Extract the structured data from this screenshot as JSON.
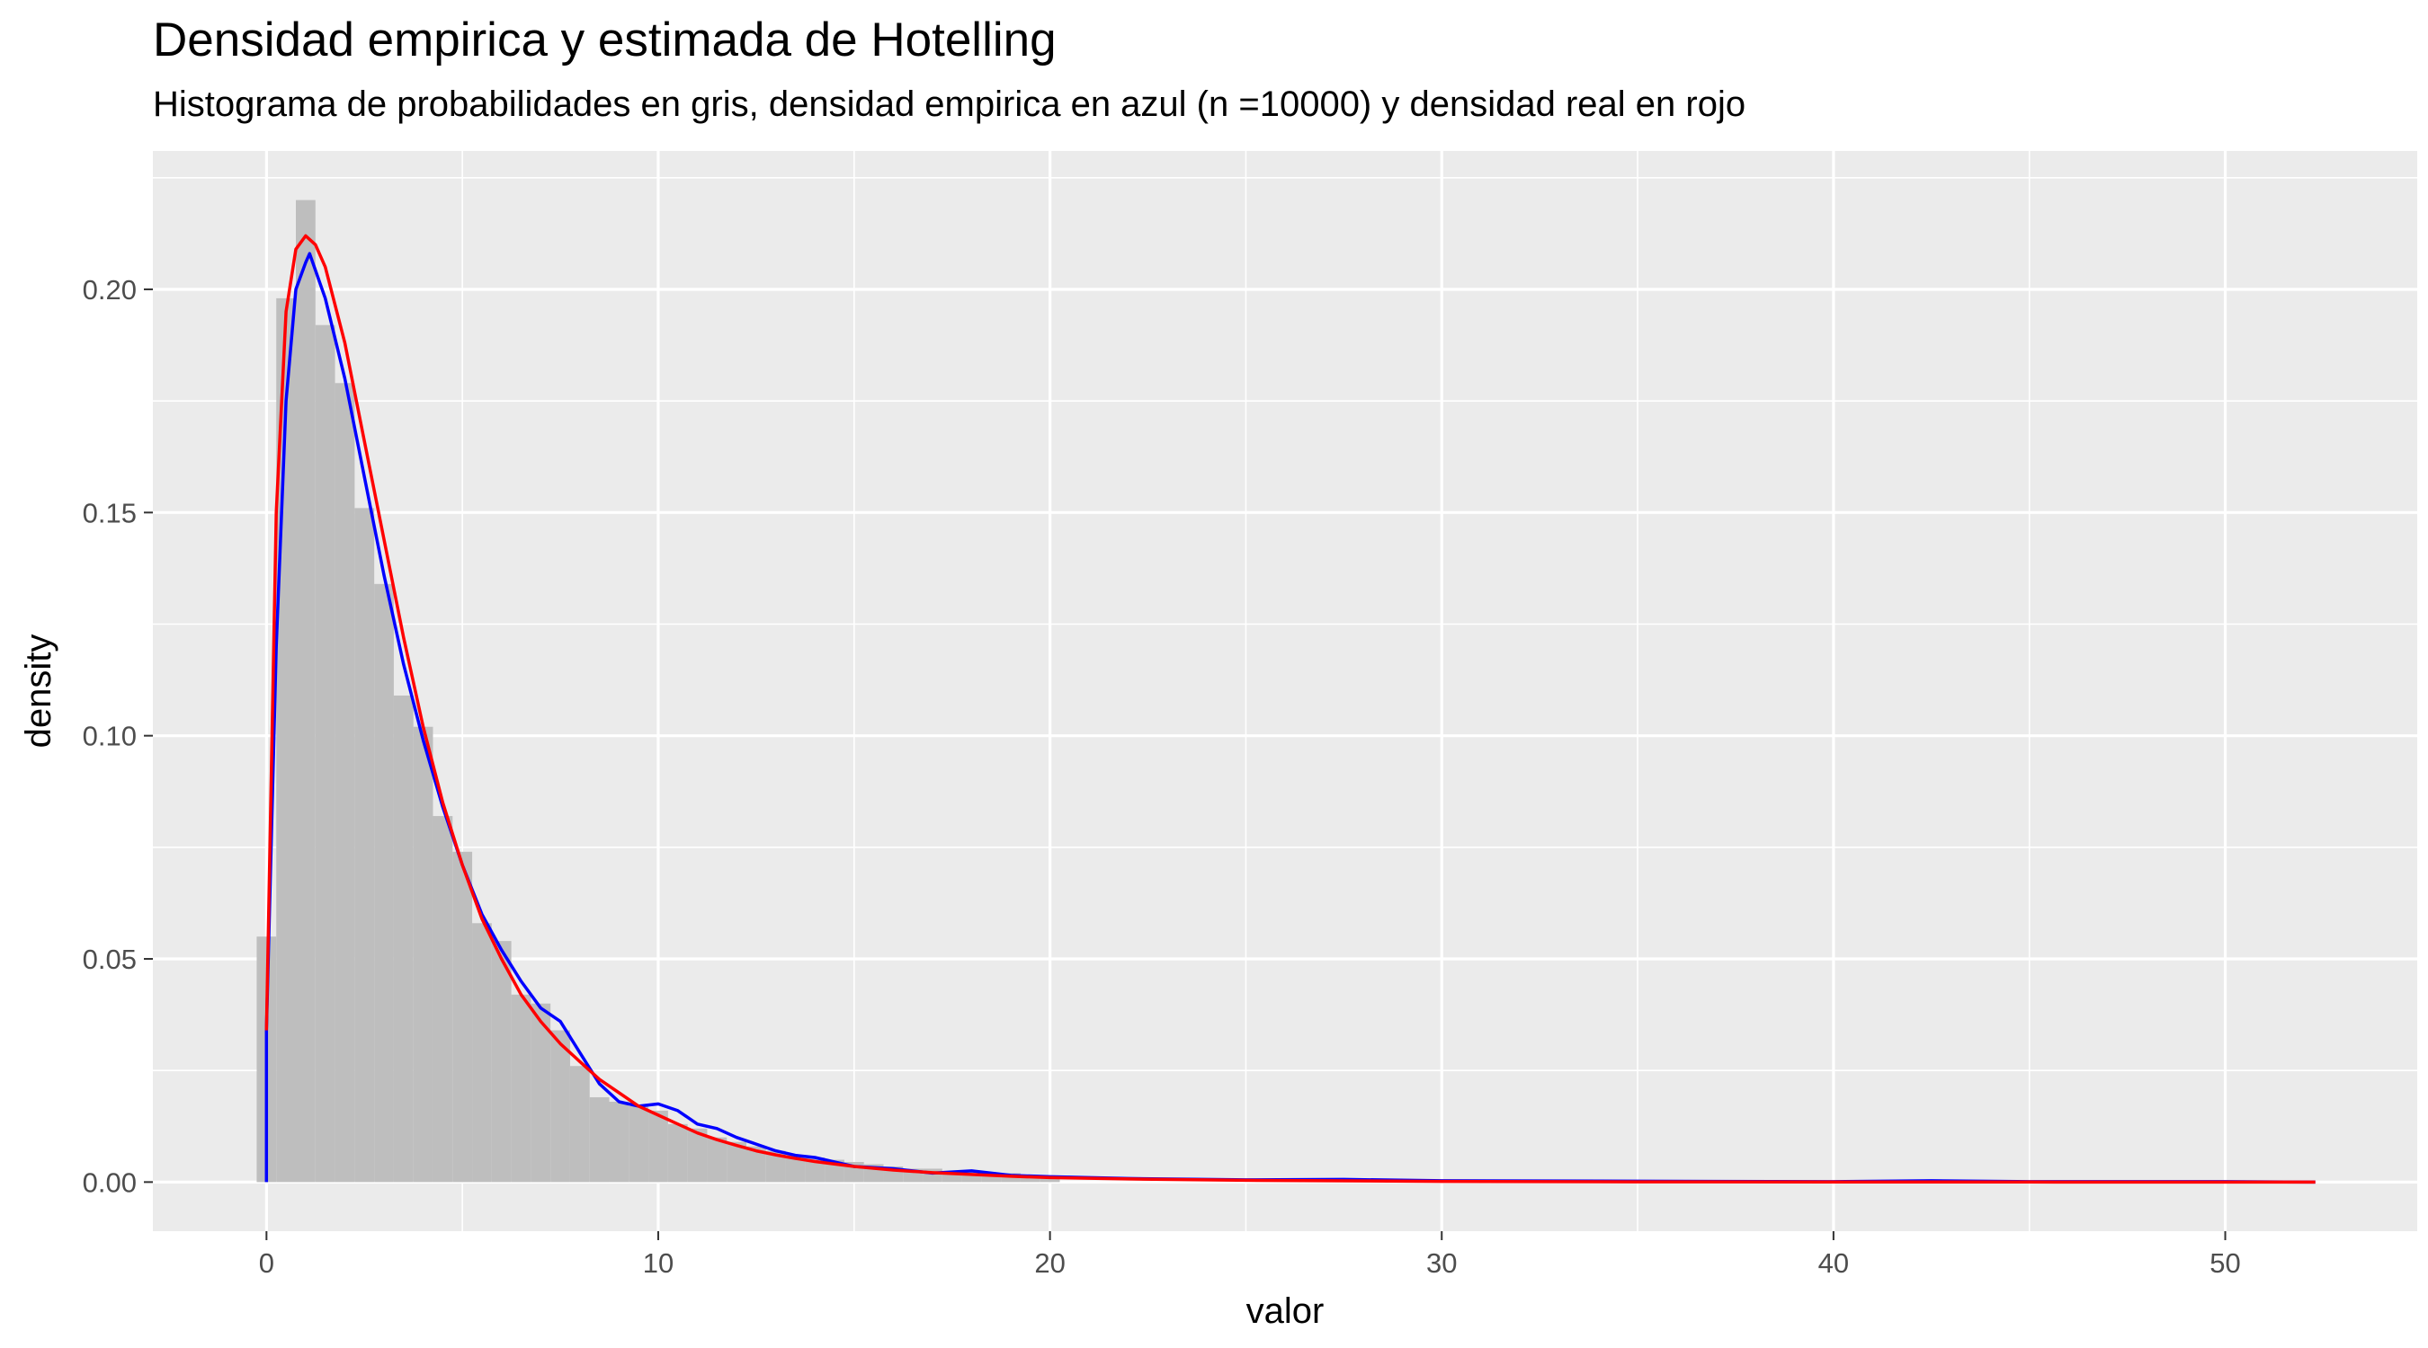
{
  "title": "Densidad empirica y estimada de Hotelling",
  "subtitle": "Histograma de probabilidades en gris, densidad empirica en azul (n =10000) y densidad real en rojo",
  "chart_data": {
    "type": "histogram",
    "title": "Densidad empirica y estimada de Hotelling",
    "subtitle": "Histograma de probabilidades en gris, densidad empirica en azul (n =10000) y densidad real en rojo",
    "xlabel": "valor",
    "ylabel": "density",
    "xlim": [
      -2.9,
      54.9
    ],
    "ylim": [
      -0.011,
      0.231
    ],
    "x_ticks": [
      0,
      10,
      20,
      30,
      40,
      50
    ],
    "x_tick_labels": [
      "0",
      "10",
      "20",
      "30",
      "40",
      "50"
    ],
    "y_ticks": [
      0.0,
      0.05,
      0.1,
      0.15,
      0.2
    ],
    "y_tick_labels": [
      "0.00",
      "0.05",
      "0.10",
      "0.15",
      "0.20"
    ],
    "grid": true,
    "legend": "none",
    "colors": {
      "panel_background": "#ebebeb",
      "grid": "#ffffff",
      "histogram": "#bebebe",
      "empirical_density": "#0000ff",
      "real_density": "#ff0000"
    },
    "histogram": {
      "bin_width": 0.5,
      "bin_starts": [
        -0.25,
        0.25,
        0.75,
        1.25,
        1.75,
        2.25,
        2.75,
        3.25,
        3.75,
        4.25,
        4.75,
        5.25,
        5.75,
        6.25,
        6.75,
        7.25,
        7.75,
        8.25,
        8.75,
        9.25,
        9.75,
        10.25,
        10.75,
        11.25,
        11.75,
        12.25,
        12.75,
        13.25,
        13.75,
        14.25,
        14.75,
        15.25,
        15.75,
        16.25,
        16.75,
        17.25,
        17.75,
        18.25,
        18.75,
        19.25,
        19.75
      ],
      "values": [
        0.055,
        0.198,
        0.22,
        0.192,
        0.179,
        0.151,
        0.134,
        0.109,
        0.102,
        0.082,
        0.074,
        0.058,
        0.054,
        0.042,
        0.04,
        0.034,
        0.026,
        0.019,
        0.018,
        0.017,
        0.016,
        0.013,
        0.012,
        0.01,
        0.009,
        0.008,
        0.007,
        0.006,
        0.0055,
        0.005,
        0.0045,
        0.004,
        0.0035,
        0.003,
        0.003,
        0.0025,
        0.0025,
        0.002,
        0.002,
        0.0015,
        0.0015
      ]
    },
    "series": [
      {
        "name": "densidad empirica",
        "color": "blue",
        "x": [
          0,
          0,
          0.25,
          0.5,
          0.75,
          1,
          1.1,
          1.5,
          2,
          2.5,
          3,
          3.5,
          4,
          4.5,
          5,
          5.5,
          6,
          6.5,
          7,
          7.5,
          8,
          8.5,
          9,
          9.5,
          10,
          10.5,
          11,
          11.5,
          12,
          12.5,
          13,
          13.5,
          14,
          15,
          16,
          17,
          18,
          19,
          20,
          22,
          25,
          27.5,
          30,
          35,
          40,
          42.5,
          45,
          50,
          52.3
        ],
        "y": [
          0,
          0.034,
          0.12,
          0.175,
          0.2,
          0.206,
          0.208,
          0.198,
          0.18,
          0.158,
          0.136,
          0.116,
          0.099,
          0.084,
          0.071,
          0.06,
          0.052,
          0.045,
          0.039,
          0.036,
          0.029,
          0.022,
          0.018,
          0.017,
          0.0175,
          0.016,
          0.013,
          0.012,
          0.01,
          0.0085,
          0.007,
          0.006,
          0.0055,
          0.0035,
          0.003,
          0.002,
          0.0025,
          0.0015,
          0.0012,
          0.0008,
          0.0005,
          0.0006,
          0.0003,
          0.0002,
          0.0001,
          0.0003,
          0.0001,
          0.0001,
          0.0
        ]
      },
      {
        "name": "densidad real",
        "color": "red",
        "x": [
          0,
          0.25,
          0.5,
          0.75,
          1,
          1.25,
          1.5,
          2,
          2.5,
          3,
          3.5,
          4,
          4.5,
          5,
          5.5,
          6,
          6.5,
          7,
          7.5,
          8,
          8.5,
          9,
          9.5,
          10,
          10.5,
          11,
          11.5,
          12,
          12.5,
          13,
          13.5,
          14,
          15,
          16,
          17,
          18,
          19,
          20,
          22,
          25,
          30,
          35,
          40,
          45,
          50,
          52.3
        ],
        "y": [
          0.034,
          0.15,
          0.195,
          0.209,
          0.212,
          0.21,
          0.205,
          0.188,
          0.166,
          0.144,
          0.122,
          0.102,
          0.085,
          0.071,
          0.059,
          0.05,
          0.042,
          0.036,
          0.031,
          0.027,
          0.023,
          0.02,
          0.017,
          0.015,
          0.013,
          0.011,
          0.0095,
          0.0082,
          0.007,
          0.0061,
          0.0053,
          0.0046,
          0.0035,
          0.0027,
          0.0021,
          0.0017,
          0.0013,
          0.001,
          0.0007,
          0.0004,
          0.00015,
          6e-05,
          2e-05,
          1e-05,
          0.0,
          0.0
        ]
      }
    ]
  }
}
